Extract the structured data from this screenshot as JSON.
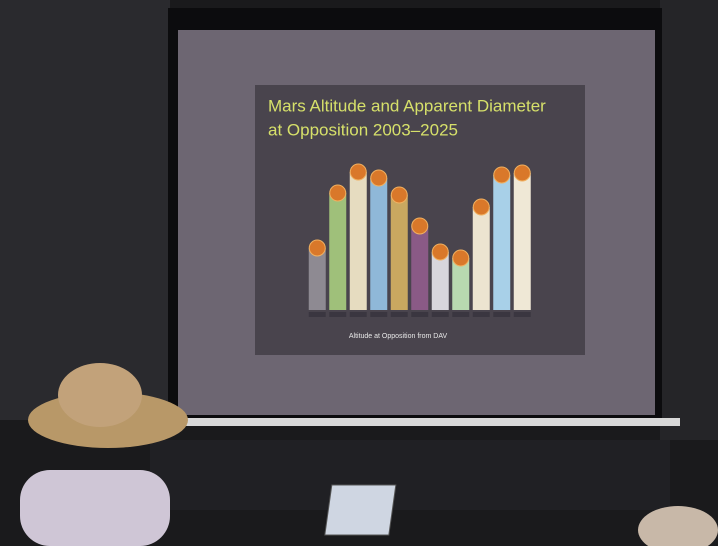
{
  "chart_data": {
    "type": "bar",
    "title": "Mars Altitude and Apparent Diameter",
    "subtitle": "at Opposition 2003–2025",
    "x_label": "Altitude at Opposition from DAV",
    "categories": [
      null,
      null,
      null,
      null,
      null,
      null,
      null,
      null,
      null,
      null,
      null
    ],
    "values": [
      62,
      117,
      138,
      132,
      115,
      84,
      58,
      52,
      103,
      135,
      137
    ],
    "colors": [
      "#8e8a92",
      "#9fc07a",
      "#e6dcc0",
      "#8fb8d8",
      "#c9a860",
      "#8a5a86",
      "#d8d6dc",
      "#b8d8b0",
      "#ece4d0",
      "#a8d0e8",
      "#efe8d6"
    ],
    "ylim": [
      0,
      150
    ]
  }
}
